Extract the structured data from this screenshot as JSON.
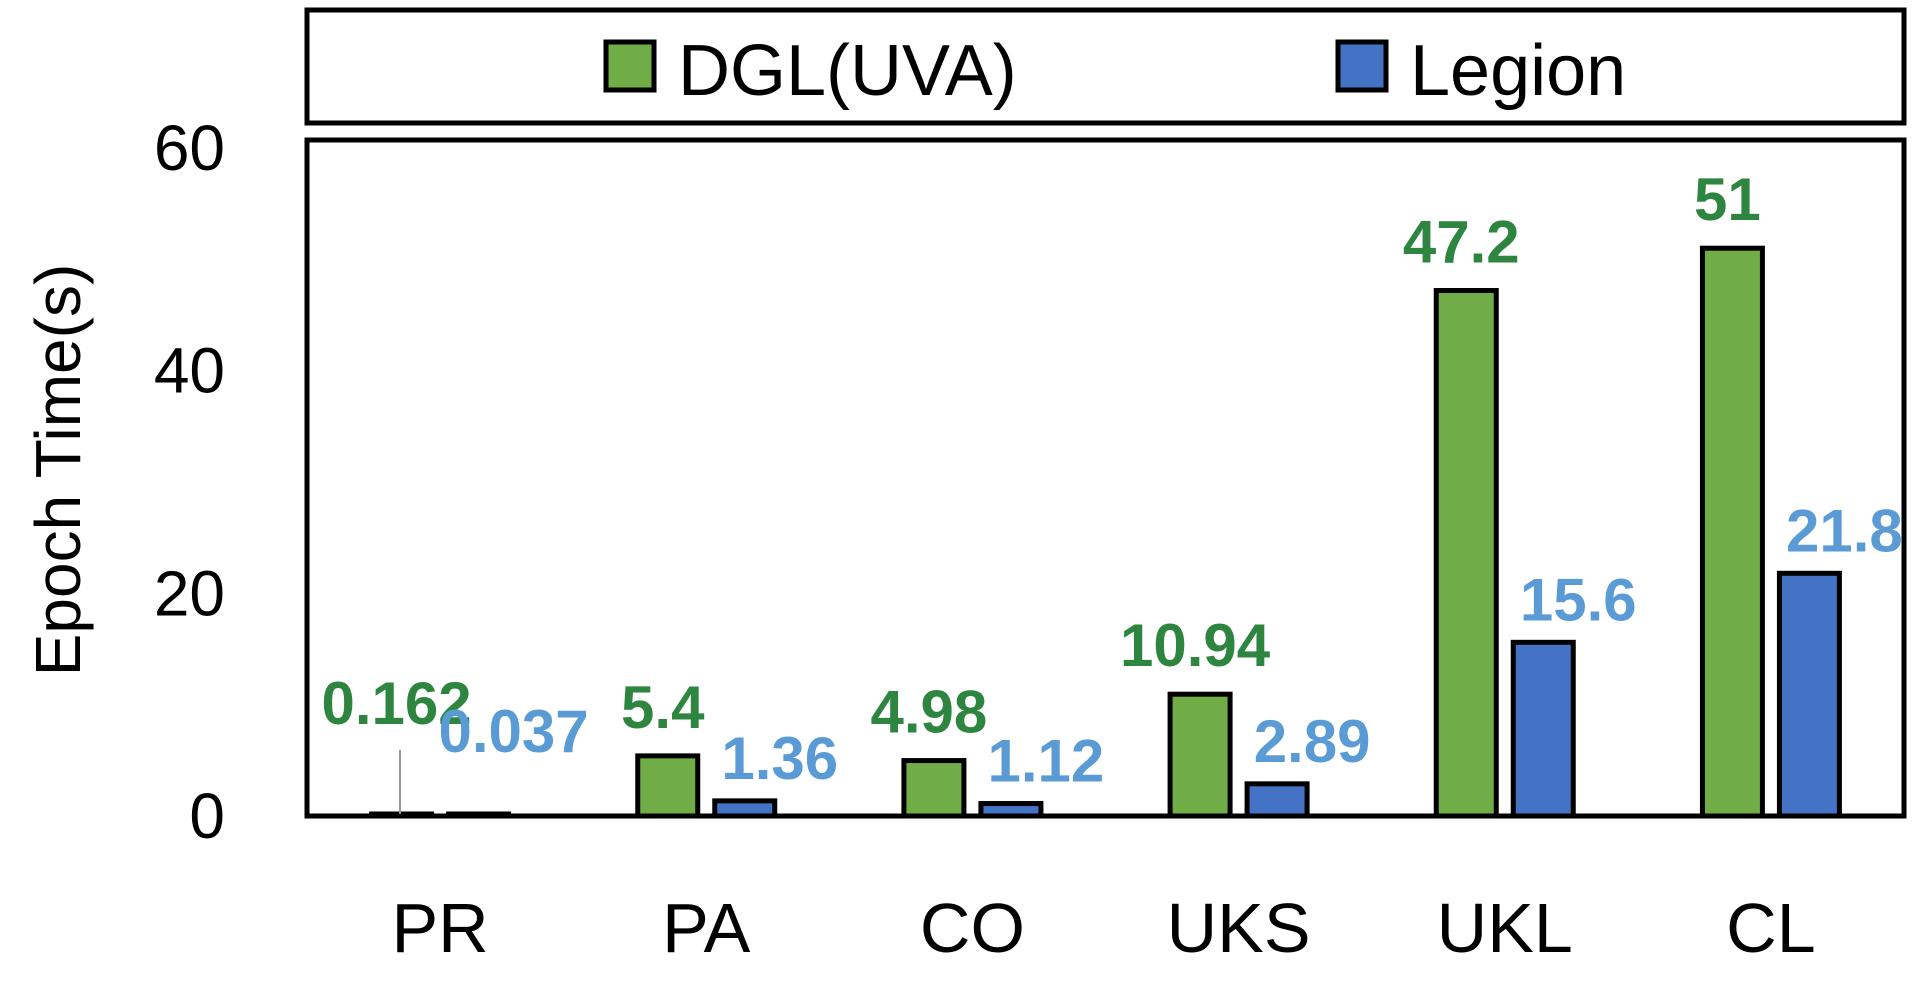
{
  "chart_data": {
    "type": "bar",
    "categories": [
      "PR",
      "PA",
      "CO",
      "UKS",
      "UKL",
      "CL"
    ],
    "series": [
      {
        "name": "DGL(UVA)",
        "values": [
          0.162,
          5.4,
          4.98,
          10.94,
          47.2,
          51
        ],
        "labels": [
          "0.162",
          "5.4",
          "4.98",
          "10.94",
          "47.2",
          "51"
        ],
        "color": "#70ad47",
        "label_color": "#2e8540"
      },
      {
        "name": "Legion",
        "values": [
          0.037,
          1.36,
          1.12,
          2.89,
          15.6,
          21.8
        ],
        "labels": [
          "0.037",
          "1.36",
          "1.12",
          "2.89",
          "15.6",
          "21.8"
        ],
        "color": "#4472c4",
        "label_color": "#5b9bd5"
      }
    ],
    "ylabel": "Epoch Time(s)",
    "xlabel": "",
    "ylim": [
      0,
      60
    ],
    "yticks": [
      "0",
      "20",
      "40",
      "60"
    ],
    "legend_position": "top",
    "grid": false
  }
}
